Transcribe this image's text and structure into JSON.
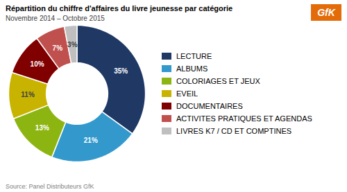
{
  "chart_data": {
    "type": "pie",
    "title": "Répartition du chiffre d'affaires du livre jeunesse par catégorie",
    "subtitle": "Novembre 2014 – Octobre 2015",
    "source": "Source: Panel Distributeurs GfK",
    "annotations": [
      "GfK"
    ],
    "categories": [
      "LECTURE",
      "ALBUMS",
      "COLORIAGES ET JEUX",
      "EVEIL",
      "DOCUMENTAIRES",
      "ACTIVITES PRATIQUES ET AGENDAS",
      "LIVRES K7 / CD ET COMPTINES"
    ],
    "values": [
      35,
      21,
      13,
      11,
      10,
      7,
      3
    ],
    "value_labels": [
      "35%",
      "21%",
      "13%",
      "11%",
      "10%",
      "7%",
      "3%"
    ],
    "colors": [
      "#1F3864",
      "#3399CC",
      "#8DB512",
      "#C8B400",
      "#800000",
      "#C0504D",
      "#BFBFBF"
    ],
    "data_labels": true,
    "legend": "right"
  }
}
